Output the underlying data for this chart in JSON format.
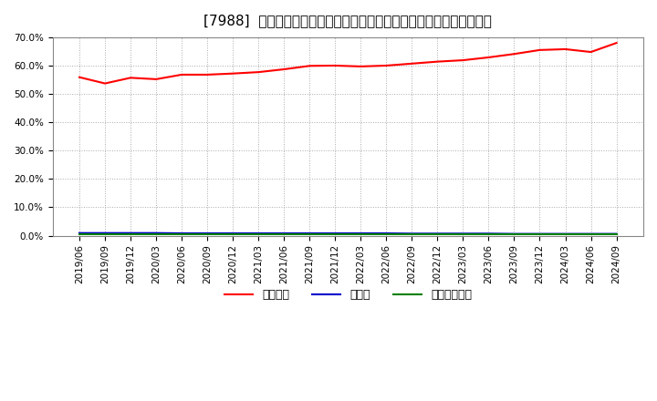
{
  "title": "[7988]  自己資本、のれん、繰延税金資産の総資産に対する比率の推移",
  "x_labels": [
    "2019/06",
    "2019/09",
    "2019/12",
    "2020/03",
    "2020/06",
    "2020/09",
    "2020/12",
    "2021/03",
    "2021/06",
    "2021/09",
    "2021/12",
    "2022/03",
    "2022/06",
    "2022/09",
    "2022/12",
    "2023/03",
    "2023/06",
    "2023/09",
    "2023/12",
    "2024/03",
    "2024/06",
    "2024/09"
  ],
  "equity_ratio": [
    0.559,
    0.537,
    0.557,
    0.552,
    0.568,
    0.568,
    0.572,
    0.577,
    0.587,
    0.599,
    0.6,
    0.597,
    0.6,
    0.607,
    0.614,
    0.619,
    0.629,
    0.641,
    0.655,
    0.658,
    0.648,
    0.68
  ],
  "goodwill_ratio": [
    0.009,
    0.009,
    0.009,
    0.009,
    0.008,
    0.008,
    0.008,
    0.008,
    0.008,
    0.008,
    0.008,
    0.008,
    0.008,
    0.007,
    0.007,
    0.007,
    0.007,
    0.006,
    0.006,
    0.006,
    0.006,
    0.006
  ],
  "deferred_tax_ratio": [
    0.005,
    0.005,
    0.005,
    0.005,
    0.005,
    0.005,
    0.005,
    0.005,
    0.005,
    0.005,
    0.005,
    0.005,
    0.005,
    0.005,
    0.005,
    0.005,
    0.005,
    0.005,
    0.005,
    0.005,
    0.005,
    0.005
  ],
  "equity_color": "#ff0000",
  "goodwill_color": "#0000cc",
  "deferred_color": "#008000",
  "bg_color": "#ffffff",
  "plot_bg_color": "#ffffff",
  "grid_color": "#aaaaaa",
  "ylim": [
    0.0,
    0.7
  ],
  "yticks": [
    0.0,
    0.1,
    0.2,
    0.3,
    0.4,
    0.5,
    0.6,
    0.7
  ],
  "legend_labels": [
    "自己資本",
    "のれん",
    "繰延税金資産"
  ],
  "title_fontsize": 11,
  "tick_fontsize": 7.5,
  "legend_fontsize": 9
}
